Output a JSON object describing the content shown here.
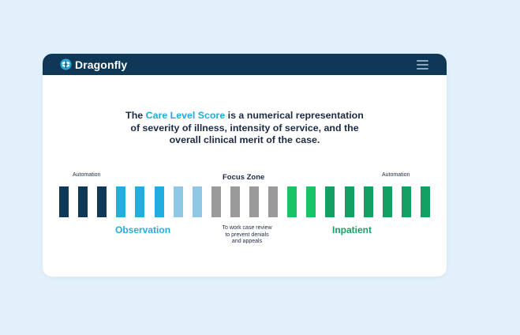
{
  "header": {
    "brand": "Dragonfly",
    "logo_icon": "dragonfly-logo-icon",
    "menu_icon": "hamburger-menu-icon"
  },
  "headline": {
    "line1_prefix": "The ",
    "line1_accent": "Care Level Score",
    "line1_suffix": " is a numerical representation",
    "line2": "of severity of illness, intensity of service, and the",
    "line3": "overall clinical merit of the case."
  },
  "scale": {
    "left_label": "Automation",
    "right_label": "Automation",
    "focus_label": "Focus Zone",
    "observation_label": "Observation",
    "inpatient_label": "Inpatient",
    "focus_note_lines": [
      "To work case review",
      "to prevent denials",
      "and appeals"
    ],
    "bar_colors": [
      "#0f3857",
      "#0f3857",
      "#0f3857",
      "#21ade0",
      "#21ade0",
      "#21ade0",
      "#8ec7e4",
      "#8ec7e4",
      "#9a9a9a",
      "#9a9a9a",
      "#9a9a9a",
      "#9a9a9a",
      "#19c468",
      "#19c468",
      "#14a062",
      "#14a062",
      "#14a062",
      "#14a062",
      "#14a062",
      "#14a062"
    ],
    "colors": {
      "accent": "#24abd9",
      "dark_navy": "#0f3857",
      "observation": "#21ade0",
      "inpatient": "#14a062"
    }
  }
}
